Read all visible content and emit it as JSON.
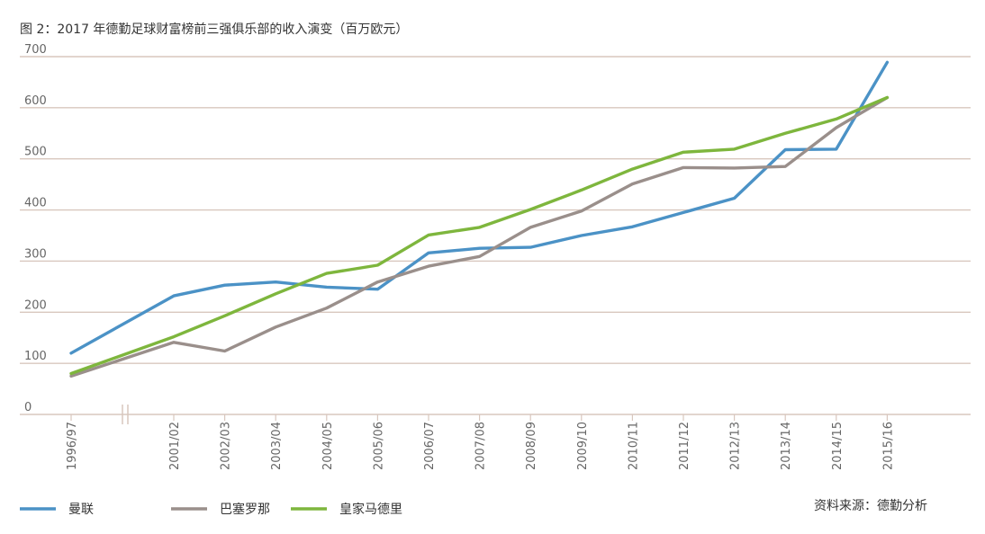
{
  "title": "图 2：2017 年德勤足球财富榜前三强俱乐部的收入演变（百万欧元）",
  "source": "资料来源：德勤分析",
  "colors": {
    "grid": "#d8c7be",
    "manutd": "#4b92c6",
    "barca": "#9a8f8b",
    "real": "#7eb63d",
    "axis_text": "#666666"
  },
  "chart_data": {
    "type": "line",
    "title": "图 2：2017 年德勤足球财富榜前三强俱乐部的收入演变（百万欧元）",
    "xlabel": "",
    "ylabel": "",
    "categories": [
      "1996/97",
      "2001/02",
      "2002/03",
      "2003/04",
      "2004/05",
      "2005/06",
      "2006/07",
      "2007/08",
      "2008/09",
      "2009/10",
      "2010/11",
      "2011/12",
      "2012/13",
      "2013/14",
      "2014/15",
      "2015/16"
    ],
    "axis_break_after": "1996/97",
    "ylim": [
      0,
      700
    ],
    "yticks": [
      0,
      100,
      200,
      300,
      400,
      500,
      600,
      700
    ],
    "grid": true,
    "legend_position": "bottom-left",
    "series": [
      {
        "name": "曼联",
        "color": "#4b92c6",
        "values": [
          120,
          232,
          253,
          259,
          249,
          245,
          316,
          325,
          327,
          350,
          367,
          395,
          423,
          518,
          519,
          689
        ]
      },
      {
        "name": "巴塞罗那",
        "color": "#9a8f8b",
        "values": [
          75,
          141,
          124,
          171,
          208,
          259,
          290,
          309,
          366,
          398,
          451,
          483,
          482,
          485,
          561,
          620
        ]
      },
      {
        "name": "皇家马德里",
        "color": "#7eb63d",
        "values": [
          80,
          152,
          193,
          236,
          276,
          292,
          351,
          366,
          401,
          439,
          480,
          513,
          519,
          550,
          578,
          620
        ]
      }
    ]
  }
}
